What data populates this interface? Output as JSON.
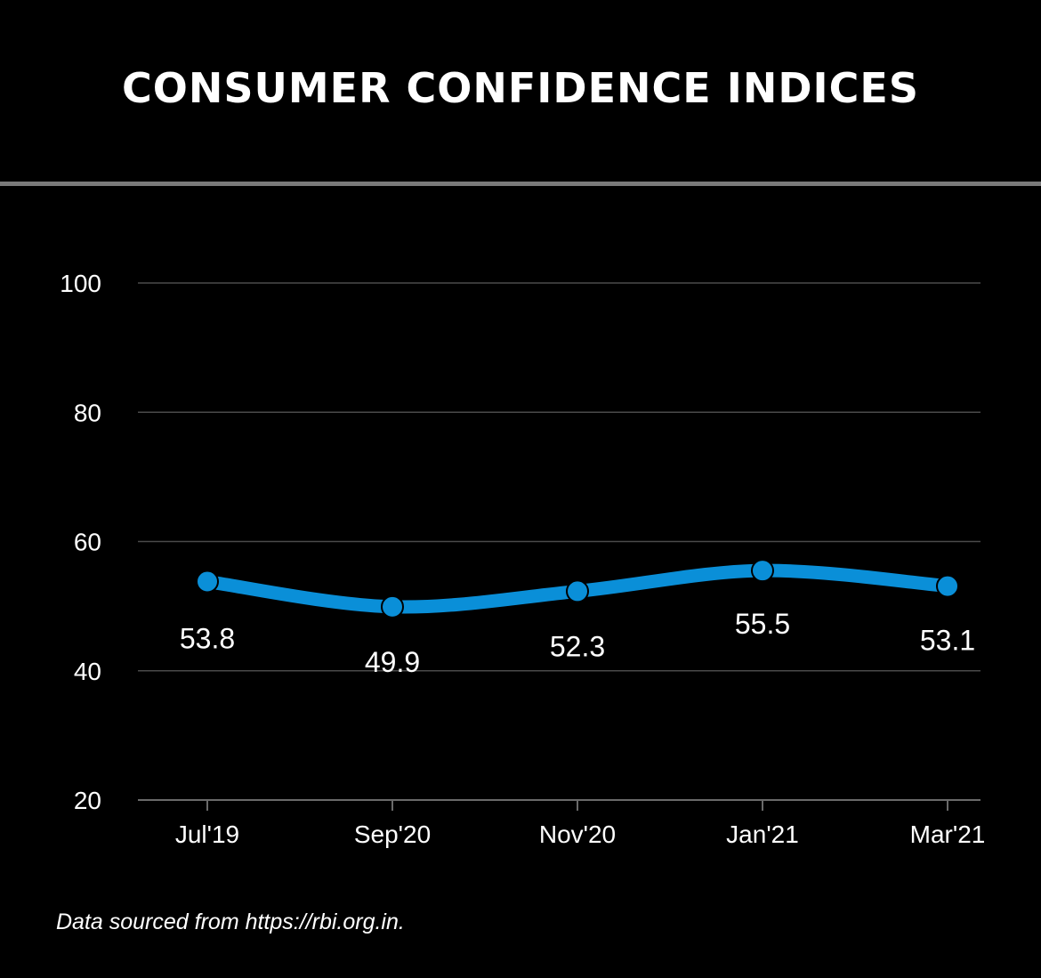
{
  "title": "CONSUMER CONFIDENCE INDICES",
  "source_note": "Data sourced from https://rbi.org.in.",
  "colors": {
    "background": "#000000",
    "line": "#0a8fd8",
    "grid": "#4a4a4a",
    "rule": "#7a7a7a",
    "text": "#ffffff"
  },
  "chart_data": {
    "type": "line",
    "categories": [
      "Jul'19",
      "Sep'20",
      "Nov'20",
      "Jan'21",
      "Mar'21"
    ],
    "series": [
      {
        "values": [
          53.8,
          49.9,
          52.3,
          55.5,
          53.1
        ],
        "data_labels": [
          "53.8",
          "49.9",
          "52.3",
          "55.5",
          "53.1"
        ]
      }
    ],
    "title": "CONSUMER CONFIDENCE INDICES",
    "xlabel": "",
    "ylabel": "",
    "ylim": [
      20,
      100
    ],
    "yticks": [
      "20",
      "40",
      "60",
      "80",
      "100"
    ],
    "grid": true,
    "legend": "none",
    "smooth": true
  }
}
